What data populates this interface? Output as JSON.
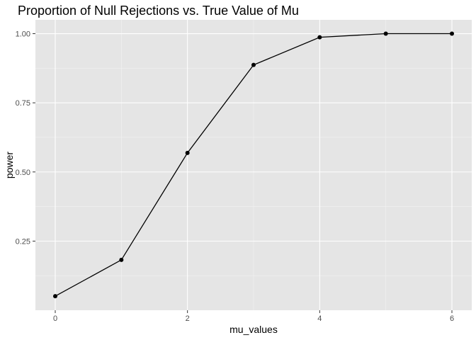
{
  "chart_data": {
    "type": "line",
    "title": "Proportion of Null Rejections vs. True Value of Mu",
    "xlabel": "mu_values",
    "ylabel": "power",
    "x": [
      0,
      1,
      2,
      3,
      4,
      5,
      6
    ],
    "y": [
      0.051,
      0.182,
      0.569,
      0.887,
      0.987,
      1.0,
      1.0
    ],
    "xlim": [
      -0.3,
      6.3
    ],
    "ylim": [
      0.0,
      1.05
    ],
    "xticks": [
      0,
      2,
      4,
      6
    ],
    "xtick_labels": [
      "0",
      "2",
      "4",
      "6"
    ],
    "yticks": [
      0.25,
      0.5,
      0.75,
      1.0
    ],
    "ytick_labels": [
      "0.25",
      "0.50",
      "0.75",
      "1.00"
    ],
    "grid": true,
    "legend": "none",
    "colors": {
      "panel": "#e5e5e5",
      "grid_major": "#ffffff",
      "grid_minor": "#f2f2f2",
      "line": "#000000",
      "point": "#000000",
      "tick": "#333333"
    }
  }
}
